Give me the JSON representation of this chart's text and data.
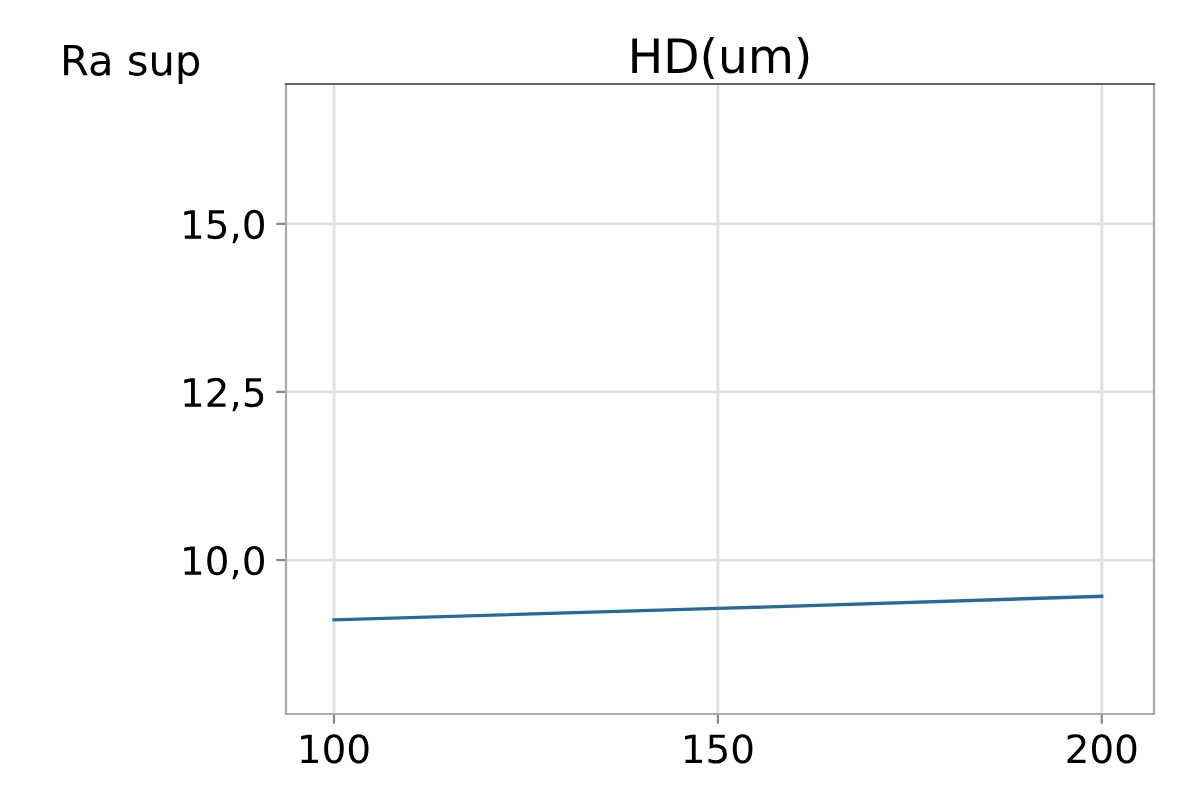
{
  "chart_data": {
    "type": "line",
    "title": "HD(um)",
    "ylabel": "Ra sup",
    "x": [
      100,
      150,
      200
    ],
    "series": [
      {
        "color": "#2a6a9a",
        "values": [
          9.11,
          9.28,
          9.46
        ]
      }
    ],
    "xlim": [
      93.75,
      206.8
    ],
    "xticks": [
      100,
      150,
      200
    ],
    "ylim": [
      7.71,
      17.08
    ],
    "yticks": [
      {
        "value": 10.0,
        "label": "10,0"
      },
      {
        "value": 12.5,
        "label": "12,5"
      },
      {
        "value": 15.0,
        "label": "15,0"
      }
    ],
    "grid": true,
    "marker": "none",
    "line_style": "solid"
  }
}
